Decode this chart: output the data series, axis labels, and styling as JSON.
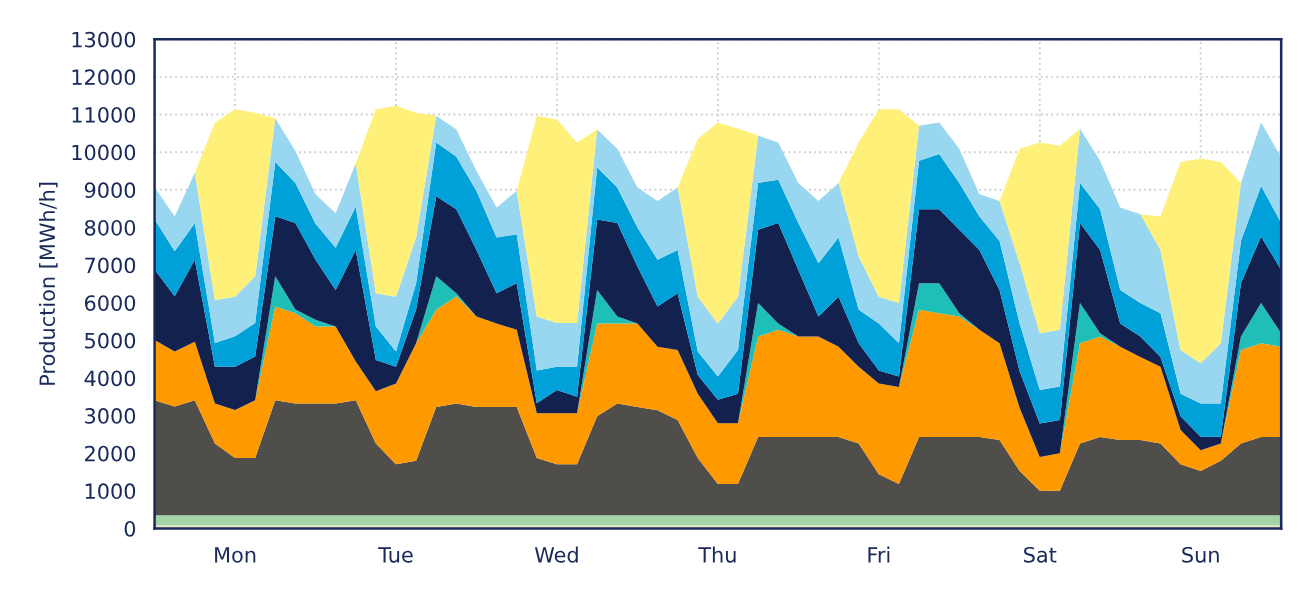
{
  "chart_data": {
    "type": "area",
    "stacked": true,
    "ylabel": "Production [MWh/h]",
    "categories": [
      null,
      null,
      null,
      null,
      "Mon",
      null,
      null,
      null,
      null,
      null,
      null,
      null,
      "Tue",
      null,
      null,
      null,
      null,
      null,
      null,
      null,
      "Wed",
      null,
      null,
      null,
      null,
      null,
      null,
      null,
      "Thu",
      null,
      null,
      null,
      null,
      null,
      null,
      null,
      "Fri",
      null,
      null,
      null,
      null,
      null,
      null,
      null,
      "Sat",
      null,
      null,
      null,
      null,
      null,
      null,
      null,
      "Sun",
      null,
      null,
      null,
      null
    ],
    "series": [
      {
        "color": "#efe3c4",
        "values": [
          80,
          80,
          80,
          80,
          80,
          80,
          80,
          80,
          80,
          80,
          80,
          80,
          80,
          80,
          80,
          80,
          80,
          80,
          80,
          80,
          80,
          80,
          80,
          80,
          80,
          80,
          80,
          80,
          80,
          80,
          80,
          80,
          80,
          80,
          80,
          80,
          80,
          80,
          80,
          80,
          80,
          80,
          80,
          80,
          80,
          80,
          80,
          80,
          80,
          80,
          80,
          80,
          80,
          80,
          80,
          80,
          80
        ]
      },
      {
        "color": "#a3d3a6",
        "values": [
          270,
          270,
          270,
          270,
          270,
          270,
          270,
          270,
          270,
          270,
          270,
          270,
          270,
          270,
          270,
          270,
          270,
          270,
          270,
          270,
          270,
          270,
          270,
          270,
          270,
          270,
          270,
          270,
          270,
          270,
          270,
          270,
          270,
          270,
          270,
          270,
          270,
          270,
          270,
          270,
          270,
          270,
          270,
          270,
          270,
          270,
          270,
          270,
          270,
          270,
          270,
          270,
          270,
          270,
          270,
          270,
          270
        ]
      },
      {
        "color": "#4f4e4b",
        "values": [
          3060,
          2890,
          3060,
          1910,
          1520,
          1520,
          3060,
          2970,
          2970,
          2970,
          3060,
          1910,
          1360,
          1450,
          2880,
          2970,
          2880,
          2880,
          2880,
          1520,
          1360,
          1360,
          2630,
          2970,
          2880,
          2790,
          2530,
          1520,
          830,
          830,
          2080,
          2080,
          2080,
          2080,
          2080,
          1910,
          1090,
          830,
          2080,
          2080,
          2080,
          2080,
          2000,
          1180,
          650,
          650,
          1910,
          2080,
          2000,
          2000,
          1910,
          1360,
          1180,
          1450,
          1910,
          2080,
          2080
        ]
      },
      {
        "color": "#ff9900",
        "values": [
          1600,
          1460,
          1550,
          1060,
          1280,
          1540,
          2490,
          2400,
          2050,
          2050,
          1030,
          1390,
          2140,
          3120,
          2580,
          2850,
          2400,
          2220,
          2050,
          1190,
          1350,
          1350,
          2470,
          2130,
          2220,
          1690,
          1860,
          1710,
          1620,
          1620,
          2670,
          2850,
          2670,
          2670,
          2400,
          2040,
          2410,
          2580,
          3380,
          3290,
          3200,
          2850,
          2570,
          1670,
          900,
          1000,
          2660,
          2670,
          2480,
          2210,
          2040,
          910,
          550,
          460,
          2480,
          2490,
          2400
        ]
      },
      {
        "color": "#1fbfb8",
        "values": [
          0,
          0,
          0,
          0,
          0,
          0,
          800,
          100,
          180,
          0,
          0,
          0,
          0,
          0,
          890,
          80,
          0,
          0,
          0,
          0,
          0,
          0,
          890,
          180,
          0,
          0,
          0,
          0,
          0,
          0,
          890,
          170,
          0,
          0,
          0,
          0,
          0,
          0,
          710,
          800,
          90,
          0,
          0,
          0,
          0,
          0,
          1070,
          90,
          0,
          0,
          0,
          0,
          0,
          0,
          360,
          1070,
          360
        ]
      },
      {
        "color": "#13214f",
        "values": [
          1870,
          1470,
          2180,
          980,
          1150,
          1160,
          1600,
          2300,
          1590,
          970,
          2960,
          830,
          450,
          900,
          2130,
          2230,
          1770,
          800,
          1240,
          270,
          620,
          440,
          1870,
          2490,
          1510,
          1070,
          1510,
          500,
          620,
          780,
          1950,
          2670,
          1770,
          530,
          1330,
          620,
          350,
          280,
          1960,
          1960,
          2220,
          2120,
          1420,
          980,
          890,
          880,
          2130,
          2210,
          620,
          540,
          260,
          360,
          360,
          180,
          1420,
          1770,
          1680
        ]
      },
      {
        "color": "#00a0d8",
        "values": [
          1340,
          1200,
          970,
          630,
          810,
          890,
          1440,
          1060,
          960,
          1120,
          1150,
          890,
          400,
          700,
          1430,
          1400,
          1570,
          1480,
          1300,
          870,
          620,
          800,
          1380,
          940,
          1040,
          1240,
          1150,
          620,
          620,
          1160,
          1240,
          1150,
          1250,
          1420,
          1570,
          890,
          1250,
          880,
          1290,
          1470,
          1240,
          890,
          1300,
          1270,
          890,
          890,
          1060,
          1080,
          890,
          890,
          1160,
          600,
          880,
          880,
          1120,
          1340,
          1250
        ]
      },
      {
        "color": "#99d7f0",
        "values": [
          850,
          920,
          1340,
          1140,
          1050,
          1240,
          1160,
          850,
          780,
          920,
          1150,
          880,
          1460,
          1210,
          710,
          720,
          530,
          800,
          1150,
          1430,
          1160,
          1160,
          1010,
          1030,
          1060,
          1560,
          1660,
          1460,
          1410,
          1420,
          1260,
          990,
          1060,
          1650,
          1450,
          1420,
          710,
          1070,
          930,
          840,
          910,
          590,
          1060,
          1600,
          1510,
          1510,
          1440,
          1290,
          2190,
          2360,
          1680,
          1160,
          1070,
          1600,
          1540,
          1690,
          1740
        ]
      },
      {
        "color": "#fff07a",
        "values": [
          0,
          0,
          0,
          4710,
          4980,
          4350,
          0,
          0,
          0,
          0,
          0,
          4890,
          5070,
          3320,
          0,
          0,
          0,
          0,
          0,
          5330,
          5410,
          4800,
          0,
          0,
          0,
          0,
          0,
          4190,
          5340,
          4460,
          0,
          0,
          0,
          0,
          0,
          3030,
          4980,
          5150,
          0,
          0,
          0,
          0,
          0,
          3040,
          5070,
          4890,
          0,
          0,
          0,
          0,
          890,
          5000,
          5440,
          4820,
          0,
          0,
          0
        ]
      }
    ],
    "ylim": [
      0,
      13000
    ],
    "yticks": [
      0,
      1000,
      2000,
      3000,
      4000,
      5000,
      6000,
      7000,
      8000,
      9000,
      10000,
      11000,
      12000,
      13000
    ],
    "grid": true
  }
}
